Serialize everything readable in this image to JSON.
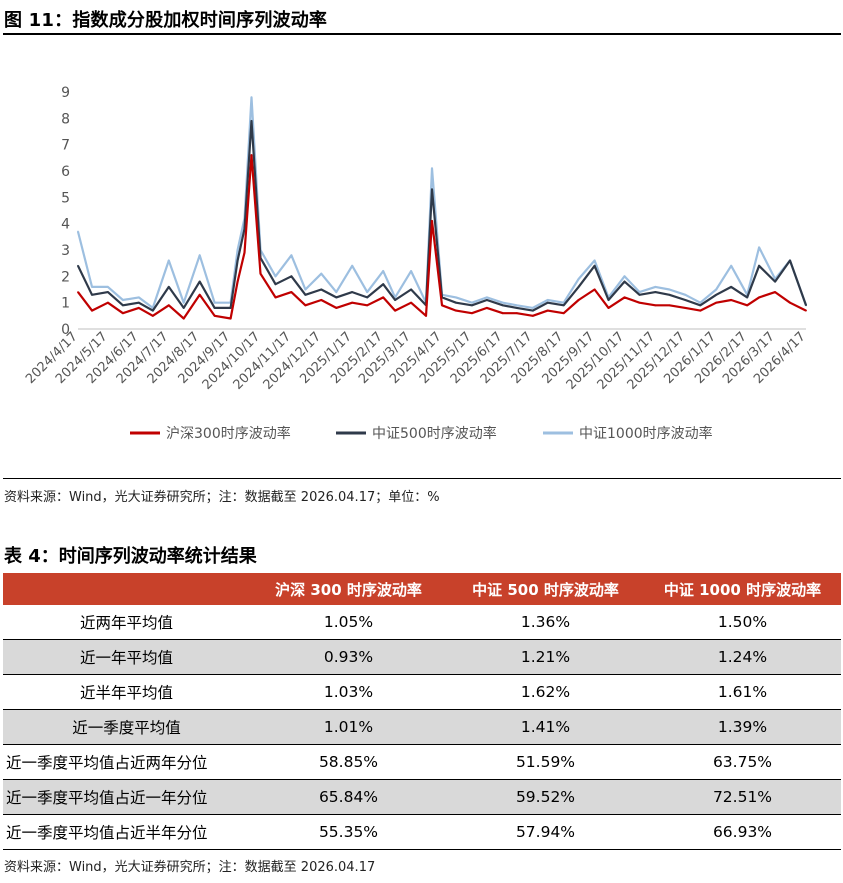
{
  "figure": {
    "title": "图 11：指数成分股加权时间序列波动率",
    "source": "资料来源：Wind，光大证券研究所；注：数据截至 2026.04.17；单位：%"
  },
  "chart_data": {
    "type": "line",
    "ylim": [
      0,
      9
    ],
    "yticks": [
      "0",
      "1",
      "2",
      "3",
      "4",
      "5",
      "6",
      "7",
      "8",
      "9"
    ],
    "x_tick_labels": [
      "2024/4/17",
      "2024/5/17",
      "2024/6/17",
      "2024/7/17",
      "2024/8/17",
      "2024/9/17",
      "2024/10/17",
      "2024/11/17",
      "2024/12/17",
      "2025/1/17",
      "2025/2/17",
      "2025/3/17",
      "2025/4/17",
      "2025/5/17",
      "2025/6/17",
      "2025/7/17",
      "2025/8/17",
      "2025/9/17",
      "2025/10/17",
      "2025/11/17",
      "2025/12/17",
      "2026/1/17",
      "2026/2/17",
      "2026/3/17",
      "2026/4/17"
    ],
    "x": [
      "2024/4/17",
      "2024/5/1",
      "2024/5/17",
      "2024/6/1",
      "2024/6/17",
      "2024/7/1",
      "2024/7/17",
      "2024/8/1",
      "2024/8/17",
      "2024/9/1",
      "2024/9/17",
      "2024/9/24",
      "2024/10/1",
      "2024/10/8",
      "2024/10/17",
      "2024/11/1",
      "2024/11/17",
      "2024/12/1",
      "2024/12/17",
      "2025/1/1",
      "2025/1/17",
      "2025/2/1",
      "2025/2/17",
      "2025/3/1",
      "2025/3/17",
      "2025/4/1",
      "2025/4/7",
      "2025/4/17",
      "2025/5/1",
      "2025/5/17",
      "2025/6/1",
      "2025/6/17",
      "2025/7/1",
      "2025/7/17",
      "2025/8/1",
      "2025/8/17",
      "2025/9/1",
      "2025/9/17",
      "2025/10/1",
      "2025/10/17",
      "2025/11/1",
      "2025/11/17",
      "2025/12/1",
      "2025/12/17",
      "2026/1/1",
      "2026/1/17",
      "2026/2/1",
      "2026/2/17",
      "2026/3/1",
      "2026/3/17",
      "2026/4/1",
      "2026/4/17"
    ],
    "series": [
      {
        "name": "沪深300时序波动率",
        "color": "#c00000",
        "values": [
          1.4,
          0.7,
          1.0,
          0.6,
          0.8,
          0.5,
          0.9,
          0.4,
          1.3,
          0.5,
          0.4,
          1.8,
          2.9,
          6.6,
          2.1,
          1.2,
          1.4,
          0.9,
          1.1,
          0.8,
          1.0,
          0.9,
          1.2,
          0.7,
          1.0,
          0.5,
          4.1,
          0.9,
          0.7,
          0.6,
          0.8,
          0.6,
          0.6,
          0.5,
          0.7,
          0.6,
          1.1,
          1.5,
          0.8,
          1.2,
          1.0,
          0.9,
          0.9,
          0.8,
          0.7,
          1.0,
          1.1,
          0.9,
          1.2,
          1.4,
          1.0,
          0.7
        ]
      },
      {
        "name": "中证500时序波动率",
        "color": "#2f3a4a",
        "values": [
          2.4,
          1.3,
          1.4,
          0.9,
          1.0,
          0.7,
          1.6,
          0.8,
          1.8,
          0.8,
          0.8,
          2.6,
          3.8,
          7.9,
          2.7,
          1.7,
          2.0,
          1.3,
          1.5,
          1.2,
          1.4,
          1.2,
          1.7,
          1.1,
          1.5,
          0.9,
          5.3,
          1.2,
          1.0,
          0.9,
          1.1,
          0.9,
          0.8,
          0.7,
          1.0,
          0.9,
          1.6,
          2.4,
          1.1,
          1.8,
          1.3,
          1.4,
          1.3,
          1.1,
          0.9,
          1.3,
          1.6,
          1.2,
          2.4,
          1.8,
          2.6,
          0.9
        ]
      },
      {
        "name": "中证1000时序波动率",
        "color": "#9dbfe0",
        "values": [
          3.7,
          1.6,
          1.6,
          1.1,
          1.2,
          0.8,
          2.6,
          1.0,
          2.8,
          1.0,
          1.0,
          3.0,
          4.2,
          8.8,
          3.0,
          2.0,
          2.8,
          1.5,
          2.1,
          1.4,
          2.4,
          1.4,
          2.2,
          1.2,
          2.2,
          1.0,
          6.1,
          1.3,
          1.2,
          1.0,
          1.2,
          1.0,
          0.9,
          0.8,
          1.1,
          1.0,
          1.9,
          2.6,
          1.2,
          2.0,
          1.4,
          1.6,
          1.5,
          1.3,
          1.0,
          1.5,
          2.4,
          1.3,
          3.1,
          1.9,
          2.6,
          0.9
        ]
      }
    ]
  },
  "table": {
    "title": "表 4：时间序列波动率统计结果",
    "headers": [
      "",
      "沪深 300 时序波动率",
      "中证 500 时序波动率",
      "中证 1000 时序波动率"
    ],
    "rows": [
      {
        "label": "近两年平均值",
        "v1": "1.05%",
        "v2": "1.36%",
        "v3": "1.50%"
      },
      {
        "label": "近一年平均值",
        "v1": "0.93%",
        "v2": "1.21%",
        "v3": "1.24%"
      },
      {
        "label": "近半年平均值",
        "v1": "1.03%",
        "v2": "1.62%",
        "v3": "1.61%"
      },
      {
        "label": "近一季度平均值",
        "v1": "1.01%",
        "v2": "1.41%",
        "v3": "1.39%"
      },
      {
        "label": "近一季度平均值占近两年分位",
        "v1": "58.85%",
        "v2": "51.59%",
        "v3": "63.75%"
      },
      {
        "label": "近一季度平均值占近一年分位",
        "v1": "65.84%",
        "v2": "59.52%",
        "v3": "72.51%"
      },
      {
        "label": "近一季度平均值占近半年分位",
        "v1": "55.35%",
        "v2": "57.94%",
        "v3": "66.93%"
      }
    ],
    "source": "资料来源：Wind，光大证券研究所；注：数据截至 2026.04.17"
  }
}
